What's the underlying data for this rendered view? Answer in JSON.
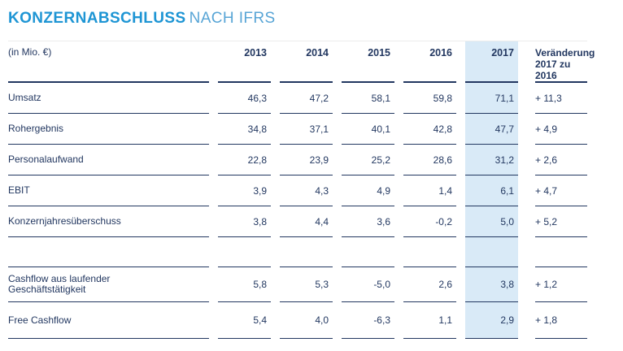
{
  "title": {
    "main": "KONZERNABSCHLUSS",
    "suffix": "NACH IFRS"
  },
  "table": {
    "unit_label": "(in Mio. €)",
    "year_columns": [
      "2013",
      "2014",
      "2015",
      "2016",
      "2017"
    ],
    "highlighted_year": "2017",
    "change_column": {
      "line1": "Veränderung",
      "line2": "2017 zu 2016"
    },
    "rows": [
      {
        "label": "Umsatz",
        "values": [
          "46,3",
          "47,2",
          "58,1",
          "59,8",
          "71,1"
        ],
        "change": "+ 11,3"
      },
      {
        "label": "Rohergebnis",
        "values": [
          "34,8",
          "37,1",
          "40,1",
          "42,8",
          "47,7"
        ],
        "change": "+ 4,9"
      },
      {
        "label": "Personalaufwand",
        "values": [
          "22,8",
          "23,9",
          "25,2",
          "28,6",
          "31,2"
        ],
        "change": "+ 2,6"
      },
      {
        "label": "EBIT",
        "values": [
          "3,9",
          "4,3",
          "4,9",
          "1,4",
          "6,1"
        ],
        "change": "+ 4,7"
      },
      {
        "label": "Konzernjahresüberschuss",
        "values": [
          "3,8",
          "4,4",
          "3,6",
          "-0,2",
          "5,0"
        ],
        "change": "+ 5,2"
      },
      {
        "label": "Cashflow aus laufender\nGeschäftstätigkeit",
        "values": [
          "5,8",
          "5,3",
          "-5,0",
          "2,6",
          "3,8"
        ],
        "change": "+ 1,2"
      },
      {
        "label": "Free Cashflow",
        "values": [
          "5,4",
          "4,0",
          "-6,3",
          "1,1",
          "2,9"
        ],
        "change": "+ 1,8"
      }
    ],
    "colors": {
      "accent_blue": "#1e95d4",
      "title_suffix_blue": "#58a5d6",
      "text_navy": "#223760",
      "highlight_blue": "#d9eaf7"
    }
  }
}
